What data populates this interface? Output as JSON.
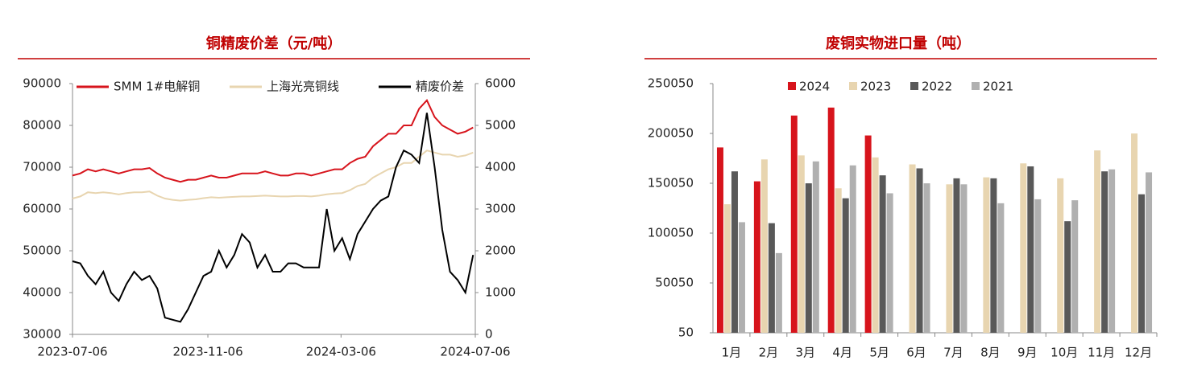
{
  "chart_data": [
    {
      "type": "line",
      "title": "铜精废价差（元/吨）",
      "x": [
        "2023-07-06",
        "2023-07-13",
        "2023-07-20",
        "2023-07-27",
        "2023-08-03",
        "2023-08-10",
        "2023-08-17",
        "2023-08-24",
        "2023-08-31",
        "2023-09-07",
        "2023-09-14",
        "2023-09-21",
        "2023-09-28",
        "2023-10-05",
        "2023-10-12",
        "2023-10-19",
        "2023-10-26",
        "2023-11-02",
        "2023-11-09",
        "2023-11-16",
        "2023-11-23",
        "2023-11-30",
        "2023-12-07",
        "2023-12-14",
        "2023-12-21",
        "2023-12-28",
        "2024-01-04",
        "2024-01-11",
        "2024-01-18",
        "2024-01-25",
        "2024-02-01",
        "2024-02-08",
        "2024-02-15",
        "2024-02-22",
        "2024-02-29",
        "2024-03-07",
        "2024-03-14",
        "2024-03-21",
        "2024-03-28",
        "2024-04-04",
        "2024-04-11",
        "2024-04-18",
        "2024-04-25",
        "2024-05-02",
        "2024-05-09",
        "2024-05-16",
        "2024-05-23",
        "2024-05-30",
        "2024-06-06",
        "2024-06-13",
        "2024-06-20",
        "2024-06-27",
        "2024-07-04"
      ],
      "series": [
        {
          "name": "SMM 1#电解铜",
          "color": "#d7141c",
          "values": [
            68000,
            68500,
            69500,
            69000,
            69500,
            69000,
            68500,
            69000,
            69500,
            69500,
            69800,
            68500,
            67500,
            67000,
            66500,
            67000,
            67000,
            67500,
            68000,
            67500,
            67500,
            68000,
            68500,
            68500,
            68500,
            69000,
            68500,
            68000,
            68000,
            68500,
            68500,
            68000,
            68500,
            69000,
            69500,
            69500,
            71000,
            72000,
            72500,
            75000,
            76500,
            78000,
            78000,
            80000,
            80000,
            84000,
            86000,
            82000,
            80000,
            79000,
            78000,
            78500,
            79500
          ]
        },
        {
          "name": "上海光亮铜线",
          "color": "#e8d5b0",
          "values": [
            62500,
            63000,
            64000,
            63800,
            64000,
            63800,
            63500,
            63800,
            64000,
            64000,
            64200,
            63200,
            62500,
            62200,
            62000,
            62200,
            62300,
            62600,
            62800,
            62700,
            62800,
            62900,
            63000,
            63000,
            63100,
            63200,
            63100,
            63000,
            63000,
            63100,
            63100,
            63000,
            63200,
            63500,
            63700,
            63800,
            64500,
            65500,
            66000,
            67500,
            68500,
            69500,
            70000,
            71000,
            71000,
            72500,
            74000,
            73500,
            73000,
            73000,
            72500,
            72800,
            73500
          ]
        },
        {
          "name": "精废价差",
          "color": "#000000",
          "axis": "y2",
          "values": [
            1750,
            1700,
            1400,
            1200,
            1500,
            1000,
            800,
            1200,
            1500,
            1300,
            1400,
            1100,
            400,
            350,
            300,
            600,
            1000,
            1400,
            1500,
            2000,
            1600,
            1900,
            2400,
            2200,
            1600,
            1900,
            1500,
            1500,
            1700,
            1700,
            1600,
            1600,
            1600,
            3000,
            2000,
            2300,
            1800,
            2400,
            2700,
            3000,
            3200,
            3300,
            4000,
            4400,
            4300,
            4100,
            5300,
            4000,
            2500,
            1500,
            1300,
            1000,
            1900
          ]
        }
      ],
      "xlim": [
        "2023-07-06",
        "2024-07-06"
      ],
      "xticks": [
        "2023-07-06",
        "2023-11-06",
        "2024-03-06",
        "2024-07-06"
      ],
      "ylim": [
        30000,
        90000
      ],
      "yticks": [
        30000,
        40000,
        50000,
        60000,
        70000,
        80000,
        90000
      ],
      "y2lim": [
        0,
        6000
      ],
      "y2ticks": [
        0,
        1000,
        2000,
        3000,
        4000,
        5000,
        6000
      ]
    },
    {
      "type": "bar",
      "title": "废铜实物进口量（吨）",
      "categories": [
        "1月",
        "2月",
        "3月",
        "4月",
        "5月",
        "6月",
        "7月",
        "8月",
        "9月",
        "10月",
        "11月",
        "12月"
      ],
      "series": [
        {
          "name": "2024",
          "color": "#d7141c",
          "values": [
            186000,
            152000,
            218000,
            226000,
            198000,
            null,
            null,
            null,
            null,
            null,
            null,
            null
          ]
        },
        {
          "name": "2023",
          "color": "#e8d5b0",
          "values": [
            129000,
            174000,
            178000,
            145000,
            176000,
            169000,
            149000,
            156000,
            170000,
            155000,
            183000,
            200000
          ]
        },
        {
          "name": "2022",
          "color": "#595959",
          "values": [
            162000,
            110000,
            150000,
            135000,
            158000,
            165000,
            155000,
            155000,
            167000,
            112000,
            162000,
            139000
          ]
        },
        {
          "name": "2021",
          "color": "#b0b0b0",
          "values": [
            111000,
            80000,
            172000,
            168000,
            140000,
            150000,
            149000,
            130000,
            134000,
            133000,
            164000,
            161000
          ]
        }
      ],
      "ylim": [
        50,
        250050
      ],
      "yticks": [
        50,
        50050,
        100050,
        150050,
        200050,
        250050
      ]
    }
  ]
}
